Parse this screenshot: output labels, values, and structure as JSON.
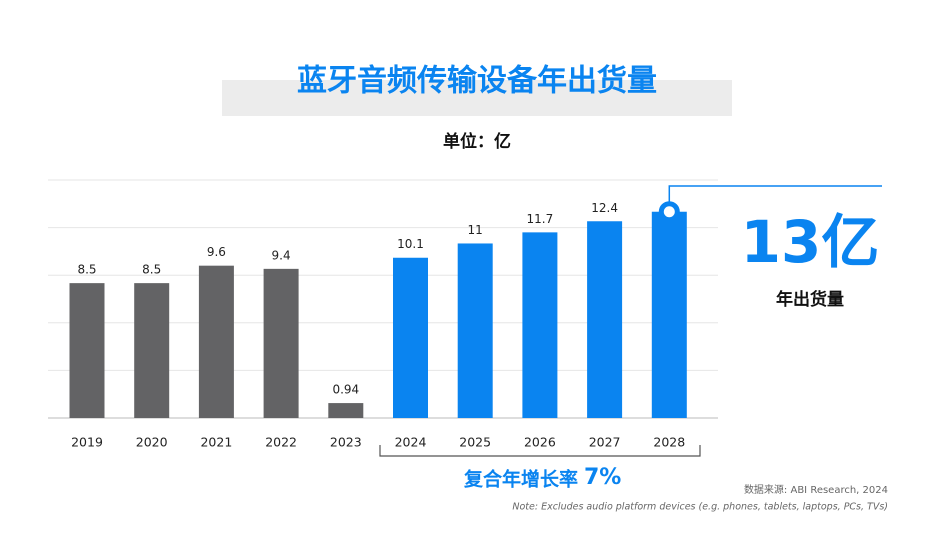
{
  "chart_data": {
    "type": "bar",
    "title": "蓝牙音频传输设备年出货量",
    "subtitle": "单位：亿",
    "categories": [
      "2019",
      "2020",
      "2021",
      "2022",
      "2023",
      "2024",
      "2025",
      "2026",
      "2027",
      "2028"
    ],
    "values": [
      8.5,
      8.5,
      9.6,
      9.4,
      0.94,
      10.1,
      11,
      11.7,
      12.4,
      13
    ],
    "colors": [
      "#636365",
      "#636365",
      "#636365",
      "#636365",
      "#636365",
      "#0a84f0",
      "#0a84f0",
      "#0a84f0",
      "#0a84f0",
      "#0a84f0"
    ],
    "ylim": [
      0,
      15
    ],
    "yticks": [
      0,
      3,
      6,
      9,
      12,
      15
    ],
    "grid": true,
    "callout": {
      "value": "13亿",
      "label": "年出货量"
    },
    "cagr": {
      "label": "复合年增长率",
      "value": "7%"
    },
    "source": "数据来源: ABI Research, 2024",
    "note": "Note: Excludes audio platform devices (e.g. phones, tablets, laptops, PCs, TVs)"
  }
}
